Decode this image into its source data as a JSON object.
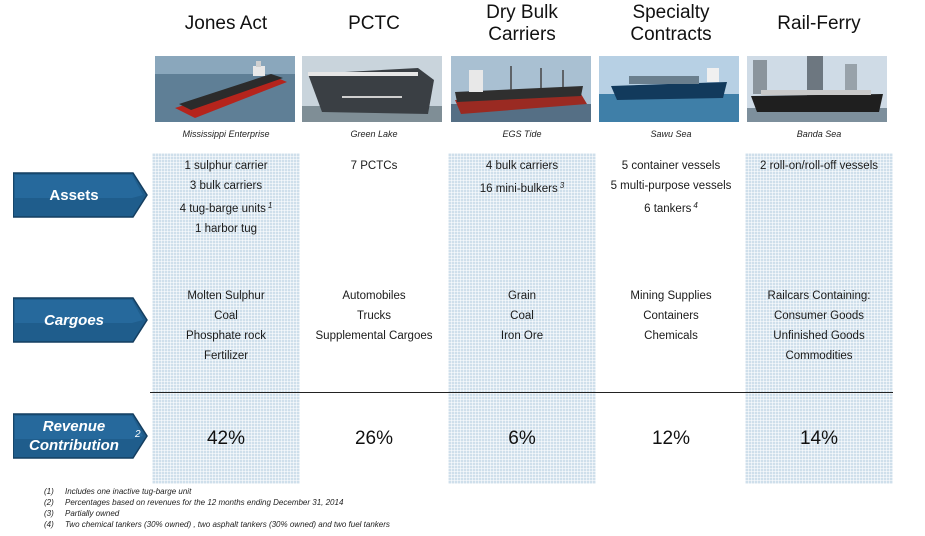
{
  "columns": [
    {
      "title": "Jones Act",
      "vessel": "Mississippi Enterprise",
      "assets": [
        {
          "text": "1 sulphur carrier"
        },
        {
          "text": "3 bulk carriers"
        },
        {
          "text": "4 tug-barge units",
          "note": "1"
        },
        {
          "text": "1 harbor tug"
        }
      ],
      "cargoes": [
        "Molten Sulphur",
        "Coal",
        "Phosphate rock",
        "Fertilizer"
      ],
      "revenue": "42%"
    },
    {
      "title": "PCTC",
      "vessel": "Green Lake",
      "assets": [
        {
          "text": "7 PCTCs"
        }
      ],
      "cargoes": [
        "Automobiles",
        "Trucks",
        "Supplemental Cargoes"
      ],
      "revenue": "26%"
    },
    {
      "title": "Dry Bulk Carriers",
      "vessel": "EGS Tide",
      "assets": [
        {
          "text": "4 bulk carriers"
        },
        {
          "text": "16 mini-bulkers",
          "note": "3"
        }
      ],
      "cargoes": [
        "Grain",
        "Coal",
        "Iron Ore"
      ],
      "revenue": "6%"
    },
    {
      "title": "Specialty Contracts",
      "vessel": "Sawu Sea",
      "assets": [
        {
          "text": "5 container vessels"
        },
        {
          "text": "5 multi-purpose vessels"
        },
        {
          "text": "6 tankers",
          "note": "4"
        }
      ],
      "cargoes": [
        "Mining Supplies",
        "Containers",
        "Chemicals"
      ],
      "revenue": "12%"
    },
    {
      "title": "Rail-Ferry",
      "vessel": "Banda Sea",
      "assets": [
        {
          "text": "2  roll-on/roll-off vessels"
        }
      ],
      "cargoes": [
        "Railcars Containing:",
        "Consumer Goods",
        "Unfinished Goods",
        "Commodities"
      ],
      "revenue": "14%"
    }
  ],
  "row_labels": {
    "assets": "Assets",
    "cargoes": "Cargoes",
    "revenue_line1": "Revenue",
    "revenue_line2": "Contribution",
    "revenue_note": "2"
  },
  "footnotes": [
    {
      "num": "(1)",
      "text": "Includes one inactive tug-barge unit"
    },
    {
      "num": "(2)",
      "text": "Percentages based on revenues for the 12 months ending December 31, 2014"
    },
    {
      "num": "(3)",
      "text": "Partially owned"
    },
    {
      "num": "(4)",
      "text": "Two chemical tankers (30% owned) , two asphalt tankers (30% owned) and two fuel tankers"
    }
  ],
  "colors": {
    "band": "#cfdfeb",
    "label_fill": "#1f5d8c",
    "label_edge": "#2f78b0"
  }
}
